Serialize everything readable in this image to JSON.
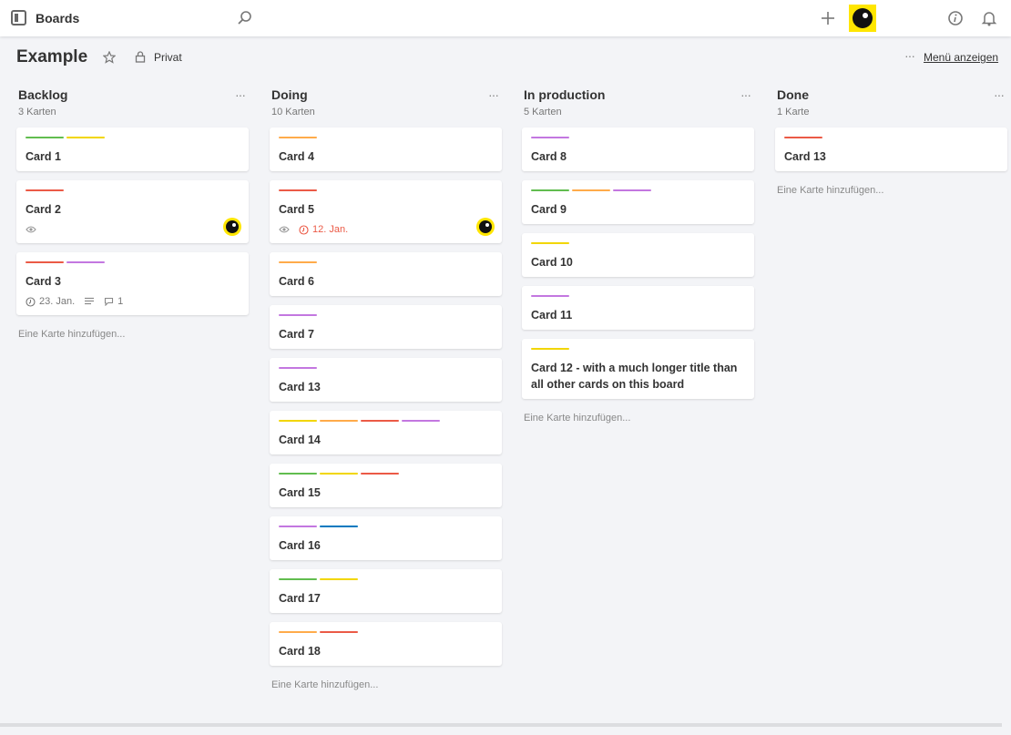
{
  "header": {
    "title": "Boards"
  },
  "board": {
    "title": "Example",
    "visibility": "Privat",
    "menu": "Menü anzeigen"
  },
  "lists": [
    {
      "title": "Backlog",
      "count": "3 Karten",
      "add": "Eine Karte hinzufügen...",
      "cards": [
        {
          "title": "Card 1",
          "labels": [
            "#61bd4f",
            "#f2d600"
          ]
        },
        {
          "title": "Card 2",
          "labels": [
            "#eb5a46"
          ],
          "badges": {
            "watch": true,
            "member": true
          }
        },
        {
          "title": "Card 3",
          "labels": [
            "#eb5a46",
            "#c377e0"
          ],
          "badges": {
            "due": "23. Jan.",
            "description": true,
            "comments": "1"
          }
        }
      ]
    },
    {
      "title": "Doing",
      "count": "10 Karten",
      "add": "Eine Karte hinzufügen...",
      "cards": [
        {
          "title": "Card 4",
          "labels": [
            "#ffab4a"
          ]
        },
        {
          "title": "Card 5",
          "labels": [
            "#eb5a46"
          ],
          "badges": {
            "watch": true,
            "due": "12. Jan.",
            "overdue": true,
            "member": true
          }
        },
        {
          "title": "Card 6",
          "labels": [
            "#ffab4a"
          ]
        },
        {
          "title": "Card 7",
          "labels": [
            "#c377e0"
          ]
        },
        {
          "title": "Card 13",
          "labels": [
            "#c377e0"
          ]
        },
        {
          "title": "Card 14",
          "labels": [
            "#f2d600",
            "#ffab4a",
            "#eb5a46",
            "#c377e0"
          ]
        },
        {
          "title": "Card 15",
          "labels": [
            "#61bd4f",
            "#f2d600",
            "#eb5a46"
          ]
        },
        {
          "title": "Card 16",
          "labels": [
            "#c377e0",
            "#0079bf"
          ]
        },
        {
          "title": "Card 17",
          "labels": [
            "#61bd4f",
            "#f2d600"
          ]
        },
        {
          "title": "Card 18",
          "labels": [
            "#ffab4a",
            "#eb5a46"
          ]
        }
      ]
    },
    {
      "title": "In production",
      "count": "5 Karten",
      "add": "Eine Karte hinzufügen...",
      "cards": [
        {
          "title": "Card 8",
          "labels": [
            "#c377e0"
          ]
        },
        {
          "title": "Card 9",
          "labels": [
            "#61bd4f",
            "#ffab4a",
            "#c377e0"
          ]
        },
        {
          "title": "Card 10",
          "labels": [
            "#f2d600"
          ]
        },
        {
          "title": "Card 11",
          "labels": [
            "#c377e0"
          ]
        },
        {
          "title": "Card 12 - with a much longer title than all other cards on this board",
          "labels": [
            "#f2d600"
          ]
        }
      ]
    },
    {
      "title": "Done",
      "count": "1 Karte",
      "add": "Eine Karte hinzufügen...",
      "cards": [
        {
          "title": "Card 13",
          "labels": [
            "#eb5a46"
          ]
        }
      ]
    }
  ]
}
